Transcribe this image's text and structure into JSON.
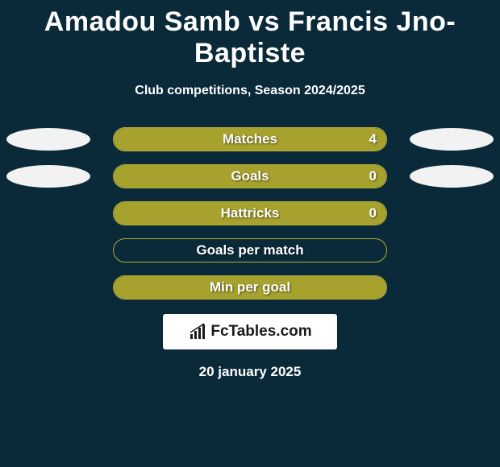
{
  "title": "Amadou Samb vs Francis Jno-Baptiste",
  "subtitle": "Club competitions, Season 2024/2025",
  "date": "20 january 2025",
  "branding": {
    "text": "FcTables.com"
  },
  "colors": {
    "background": "#0a2a3a",
    "accent": "#a7a12e",
    "accent_border": "#b5af35",
    "text": "#ffffff",
    "avatar_bg": "#f2f2f2"
  },
  "stats": [
    {
      "label": "Matches",
      "value": "4",
      "show_avatars": true,
      "fill": "full",
      "fill_color": "#a7a12e",
      "border_color": "#b5af35"
    },
    {
      "label": "Goals",
      "value": "0",
      "show_avatars": true,
      "fill": "full",
      "fill_color": "#a7a12e",
      "border_color": "#b5af35"
    },
    {
      "label": "Hattricks",
      "value": "0",
      "show_avatars": false,
      "fill": "full",
      "fill_color": "#a7a12e",
      "border_color": "#b5af35"
    },
    {
      "label": "Goals per match",
      "value": "",
      "show_avatars": false,
      "fill": "none",
      "fill_color": "#a7a12e",
      "border_color": "#b5af35"
    },
    {
      "label": "Min per goal",
      "value": "",
      "show_avatars": false,
      "fill": "full",
      "fill_color": "#a7a12e",
      "border_color": "#b5af35"
    }
  ]
}
